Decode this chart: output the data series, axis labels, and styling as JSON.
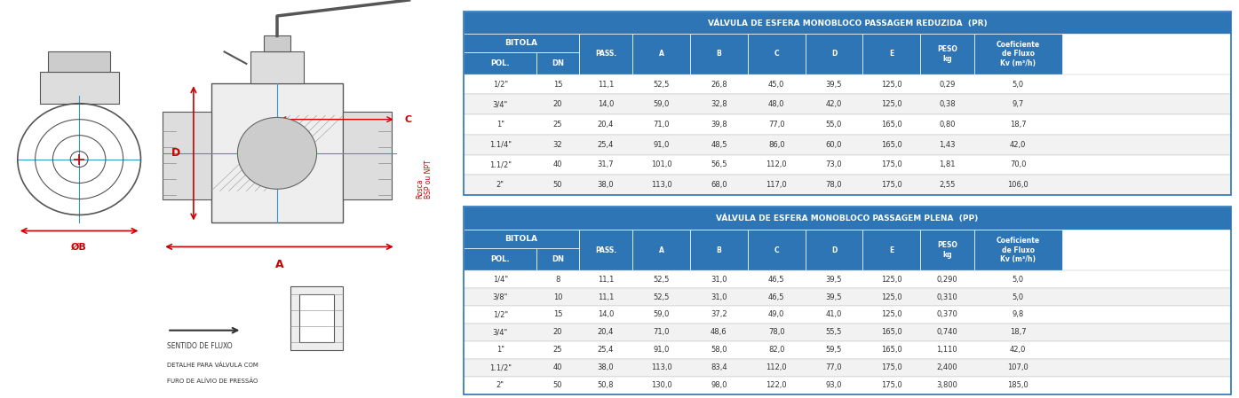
{
  "table1_title": "VÁLVULA DE ESFERA MONOBLOCO PASSAGEM REDUZIDA  (PR)",
  "table2_title": "VÁLVULA DE ESFERA MONOBLOCO PASSAGEM PLENA  (PP)",
  "col_headers": [
    "BITOLA\nPOL.",
    "DN",
    "PASS.",
    "A",
    "B",
    "C",
    "D",
    "E",
    "PESO\nkg",
    "Coeficiente\nde Fluxo\nKv (m³/h)"
  ],
  "bitola_header": "BITOLA",
  "table1_data": [
    [
      "1/2\"",
      "15",
      "11,1",
      "52,5",
      "26,8",
      "45,0",
      "39,5",
      "125,0",
      "0,29",
      "5,0"
    ],
    [
      "3/4\"",
      "20",
      "14,0",
      "59,0",
      "32,8",
      "48,0",
      "42,0",
      "125,0",
      "0,38",
      "9,7"
    ],
    [
      "1\"",
      "25",
      "20,4",
      "71,0",
      "39,8",
      "77,0",
      "55,0",
      "165,0",
      "0,80",
      "18,7"
    ],
    [
      "1.1/4\"",
      "32",
      "25,4",
      "91,0",
      "48,5",
      "86,0",
      "60,0",
      "165,0",
      "1,43",
      "42,0"
    ],
    [
      "1.1/2\"",
      "40",
      "31,7",
      "101,0",
      "56,5",
      "112,0",
      "73,0",
      "175,0",
      "1,81",
      "70,0"
    ],
    [
      "2\"",
      "50",
      "38,0",
      "113,0",
      "68,0",
      "117,0",
      "78,0",
      "175,0",
      "2,55",
      "106,0"
    ]
  ],
  "table2_data": [
    [
      "1/4\"",
      "8",
      "11,1",
      "52,5",
      "31,0",
      "46,5",
      "39,5",
      "125,0",
      "0,290",
      "5,0"
    ],
    [
      "3/8\"",
      "10",
      "11,1",
      "52,5",
      "31,0",
      "46,5",
      "39,5",
      "125,0",
      "0,310",
      "5,0"
    ],
    [
      "1/2\"",
      "15",
      "14,0",
      "59,0",
      "37,2",
      "49,0",
      "41,0",
      "125,0",
      "0,370",
      "9,8"
    ],
    [
      "3/4\"",
      "20",
      "20,4",
      "71,0",
      "48,6",
      "78,0",
      "55,5",
      "165,0",
      "0,740",
      "18,7"
    ],
    [
      "1\"",
      "25",
      "25,4",
      "91,0",
      "58,0",
      "82,0",
      "59,5",
      "165,0",
      "1,110",
      "42,0"
    ],
    [
      "1.1/2\"",
      "40",
      "38,0",
      "113,0",
      "83,4",
      "112,0",
      "77,0",
      "175,0",
      "2,400",
      "107,0"
    ],
    [
      "2\"",
      "50",
      "50,8",
      "130,0",
      "98,0",
      "122,0",
      "93,0",
      "175,0",
      "3,800",
      "185,0"
    ]
  ],
  "header_bg": "#2e75b6",
  "subheader_bg": "#2e75b6",
  "row_bg_even": "#f2f2f2",
  "row_bg_odd": "#ffffff",
  "header_text": "#ffffff",
  "data_text": "#333333",
  "border_color": "#2e75b6",
  "bg_color": "#ffffff"
}
